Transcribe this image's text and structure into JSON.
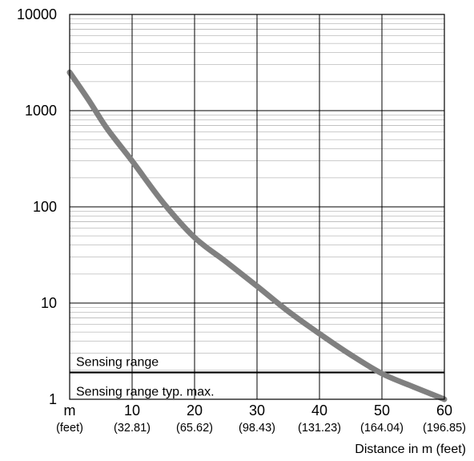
{
  "chart_data": {
    "type": "line",
    "title": "",
    "xlabel": "Distance in m (feet)",
    "ylabel": "",
    "x_unit_label": "m",
    "x_unit_sublabel": "(feet)",
    "xlim": [
      0,
      60
    ],
    "ylim": [
      1,
      10000
    ],
    "y_scale": "log",
    "grid": true,
    "x_ticks": [
      {
        "value": 10,
        "label": "10",
        "sublabel": "(32.81)"
      },
      {
        "value": 20,
        "label": "20",
        "sublabel": "(65.62)"
      },
      {
        "value": 30,
        "label": "30",
        "sublabel": "(98.43)"
      },
      {
        "value": 40,
        "label": "40",
        "sublabel": "(131.23)"
      },
      {
        "value": 50,
        "label": "50",
        "sublabel": "(164.04)"
      },
      {
        "value": 60,
        "label": "60",
        "sublabel": "(196.85)"
      }
    ],
    "y_ticks": [
      {
        "value": 1,
        "label": "1"
      },
      {
        "value": 10,
        "label": "10"
      },
      {
        "value": 100,
        "label": "100"
      },
      {
        "value": 1000,
        "label": "1000"
      },
      {
        "value": 10000,
        "label": "10000"
      }
    ],
    "series": [
      {
        "color": "#808080",
        "x": [
          0,
          3,
          6,
          10,
          15,
          20,
          25,
          30,
          35,
          40,
          45,
          50,
          55,
          60
        ],
        "y": [
          2500,
          1300,
          650,
          300,
          110,
          48,
          27,
          15,
          8.2,
          4.8,
          2.9,
          1.85,
          1.35,
          1.0
        ]
      }
    ],
    "reference_lines": [
      {
        "y": 1.9,
        "label_above": "Sensing range",
        "label_below": "Sensing range typ. max."
      }
    ]
  }
}
